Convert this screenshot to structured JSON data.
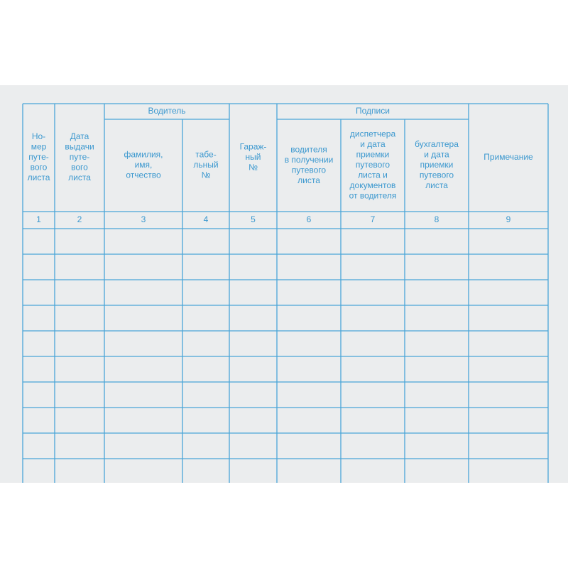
{
  "header": {
    "groups": [
      {
        "label": "Водитель"
      },
      {
        "label": "Подписи"
      }
    ]
  },
  "columns": [
    {
      "lines": [
        "Но-",
        "мер",
        "путе-",
        "вого",
        "листа"
      ],
      "number": 1
    },
    {
      "lines": [
        "Дата",
        "выдачи",
        "путе-",
        "вого",
        "листа"
      ],
      "number": 2
    },
    {
      "lines": [
        "фамилия,",
        "имя,",
        "отчество"
      ],
      "number": 3
    },
    {
      "lines": [
        "табе-",
        "льный",
        "№"
      ],
      "number": 4
    },
    {
      "lines": [
        "Гараж-",
        "ный",
        "№"
      ],
      "number": 5
    },
    {
      "lines": [
        "водителя",
        "в получении",
        "путевого",
        "листа"
      ],
      "number": 6
    },
    {
      "lines": [
        "диспетчера",
        "и дата",
        "приемки",
        "путевого",
        "листа и",
        "документов",
        "от водителя"
      ],
      "number": 7
    },
    {
      "lines": [
        "бухгалтера",
        "и дата",
        "приемки",
        "путевого",
        "листа"
      ],
      "number": 8
    },
    {
      "lines": [
        "Примечание"
      ],
      "number": 9
    }
  ]
}
